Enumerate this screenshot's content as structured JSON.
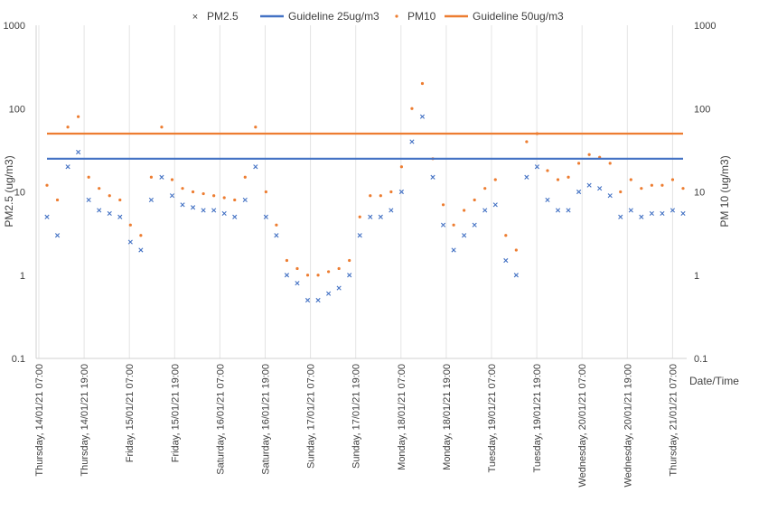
{
  "chart_data": {
    "type": "scatter",
    "legend": {
      "placement": "top",
      "entries": [
        {
          "label": "PM2.5",
          "color": "#4472C4",
          "marker": "x"
        },
        {
          "label": "Guideline 25ug/m3",
          "color": "#4472C4",
          "marker": "line"
        },
        {
          "label": "PM10",
          "color": "#ED7D31",
          "marker": "dot"
        },
        {
          "label": "Guideline 50ug/m3",
          "color": "#ED7D31",
          "marker": "line"
        }
      ]
    },
    "ylabel_left": "PM2.5 (ug/m3)",
    "ylabel_right": "PM 10 (ug/m3)",
    "xlabel": "Date/Time",
    "yscale": "log",
    "ylim": [
      0.1,
      1000
    ],
    "y_ticks": [
      "0.1",
      "1",
      "10",
      "100",
      "1000"
    ],
    "x_tick_labels": [
      "Thursday, 14/01/21 07:00",
      "Thursday, 14/01/21 19:00",
      "Friday, 15/01/21 07:00",
      "Friday, 15/01/21 19:00",
      "Saturday, 16/01/21 07:00",
      "Saturday, 16/01/21 19:00",
      "Sunday, 17/01/21 07:00",
      "Sunday, 17/01/21 19:00",
      "Monday, 18/01/21 07:00",
      "Monday, 18/01/21 19:00",
      "Tuesday, 19/01/21 07:00",
      "Tuesday, 19/01/21 19:00",
      "Wednesday, 20/01/21 07:00",
      "Wednesday, 20/01/21 19:00",
      "Thursday, 21/01/21 07:00"
    ],
    "grid": {
      "vertical": true,
      "horizontal": false
    },
    "series": [
      {
        "name": "PM2.5",
        "color": "#4472C4",
        "values": [
          5,
          3,
          20,
          30,
          8,
          6,
          5.5,
          5,
          2.5,
          2,
          8,
          15,
          9,
          7,
          6.5,
          6,
          6,
          5.5,
          5,
          8,
          20,
          5,
          3,
          1,
          0.8,
          0.5,
          0.5,
          0.6,
          0.7,
          1,
          3,
          5,
          5,
          6,
          10,
          40,
          80,
          15,
          4,
          2,
          3,
          4,
          6,
          7,
          1.5,
          1,
          15,
          20,
          8,
          6,
          6,
          10,
          12,
          11,
          9,
          5,
          6,
          5,
          5.5,
          5.5,
          6,
          5.5
        ]
      },
      {
        "name": "PM10",
        "color": "#ED7D31",
        "values": [
          12,
          8,
          60,
          80,
          15,
          11,
          9,
          8,
          4,
          3,
          15,
          60,
          14,
          11,
          10,
          9.5,
          9,
          8.5,
          8,
          15,
          60,
          10,
          4,
          1.5,
          1.2,
          1,
          1,
          1.1,
          1.2,
          1.5,
          5,
          9,
          9,
          10,
          20,
          100,
          200,
          25,
          7,
          4,
          6,
          8,
          11,
          14,
          3,
          2,
          40,
          50,
          18,
          14,
          15,
          22,
          28,
          26,
          22,
          10,
          14,
          11,
          12,
          12,
          14,
          11
        ]
      },
      {
        "name": "Guideline 25ug/m3",
        "color": "#4472C4",
        "values": [
          25
        ]
      },
      {
        "name": "Guideline 50ug/m3",
        "color": "#ED7D31",
        "values": [
          50
        ]
      }
    ]
  }
}
